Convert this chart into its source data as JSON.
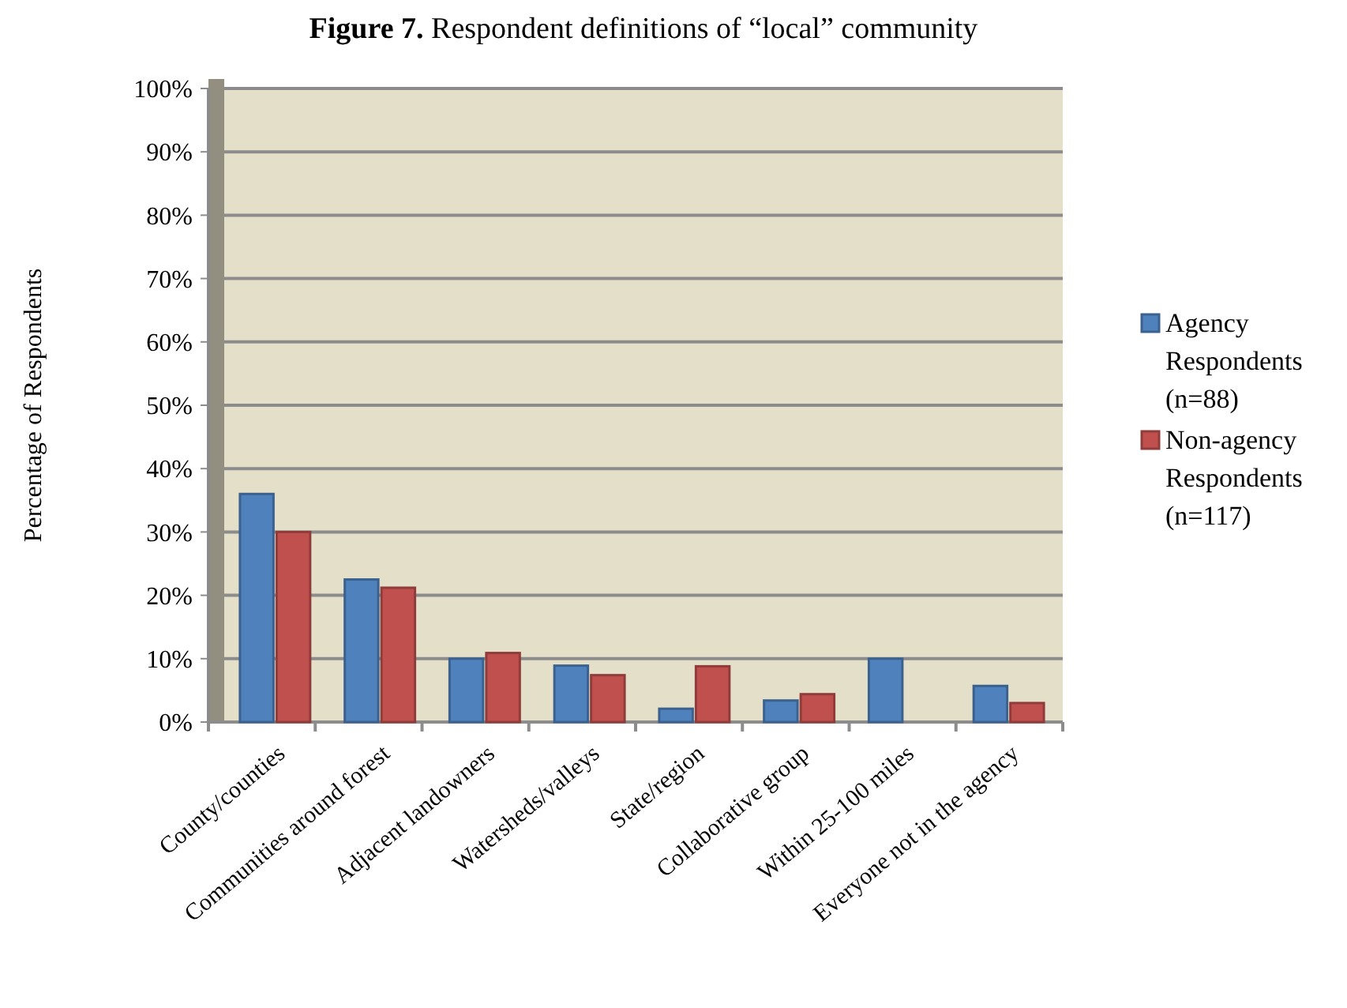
{
  "chart_data": {
    "type": "bar",
    "title": "Figure 7. Respondent definitions of “local” community",
    "ylabel": "Percentage of Respondents",
    "categories": [
      "County/counties",
      "Communities around forest",
      "Adjacent landowners",
      "Watersheds/valleys",
      "State/region",
      "Collaborative group",
      "Within 25-100 miles",
      "Everyone not in the agency"
    ],
    "series": [
      {
        "name": "Agency Respondents (n=88)",
        "color": "#4f81bd",
        "values": [
          36,
          22.5,
          10,
          8.9,
          2.1,
          3.4,
          10,
          5.7
        ]
      },
      {
        "name": "Non-agency Respondents (n=117)",
        "color": "#c0504d",
        "values": [
          30,
          21.2,
          10.9,
          7.4,
          8.8,
          4.4,
          null,
          3
        ]
      }
    ],
    "ylim": [
      0,
      100
    ],
    "yticks": [
      {
        "value": 0,
        "label": "0%"
      },
      {
        "value": 10,
        "label": "10%"
      },
      {
        "value": 20,
        "label": "20%"
      },
      {
        "value": 30,
        "label": "30%"
      },
      {
        "value": 40,
        "label": "40%"
      },
      {
        "value": 50,
        "label": "50%"
      },
      {
        "value": 60,
        "label": "60%"
      },
      {
        "value": 70,
        "label": "70%"
      },
      {
        "value": 80,
        "label": "80%"
      },
      {
        "value": 90,
        "label": "90%"
      },
      {
        "value": 100,
        "label": "100%"
      }
    ],
    "grid": "y",
    "legend": "right"
  }
}
